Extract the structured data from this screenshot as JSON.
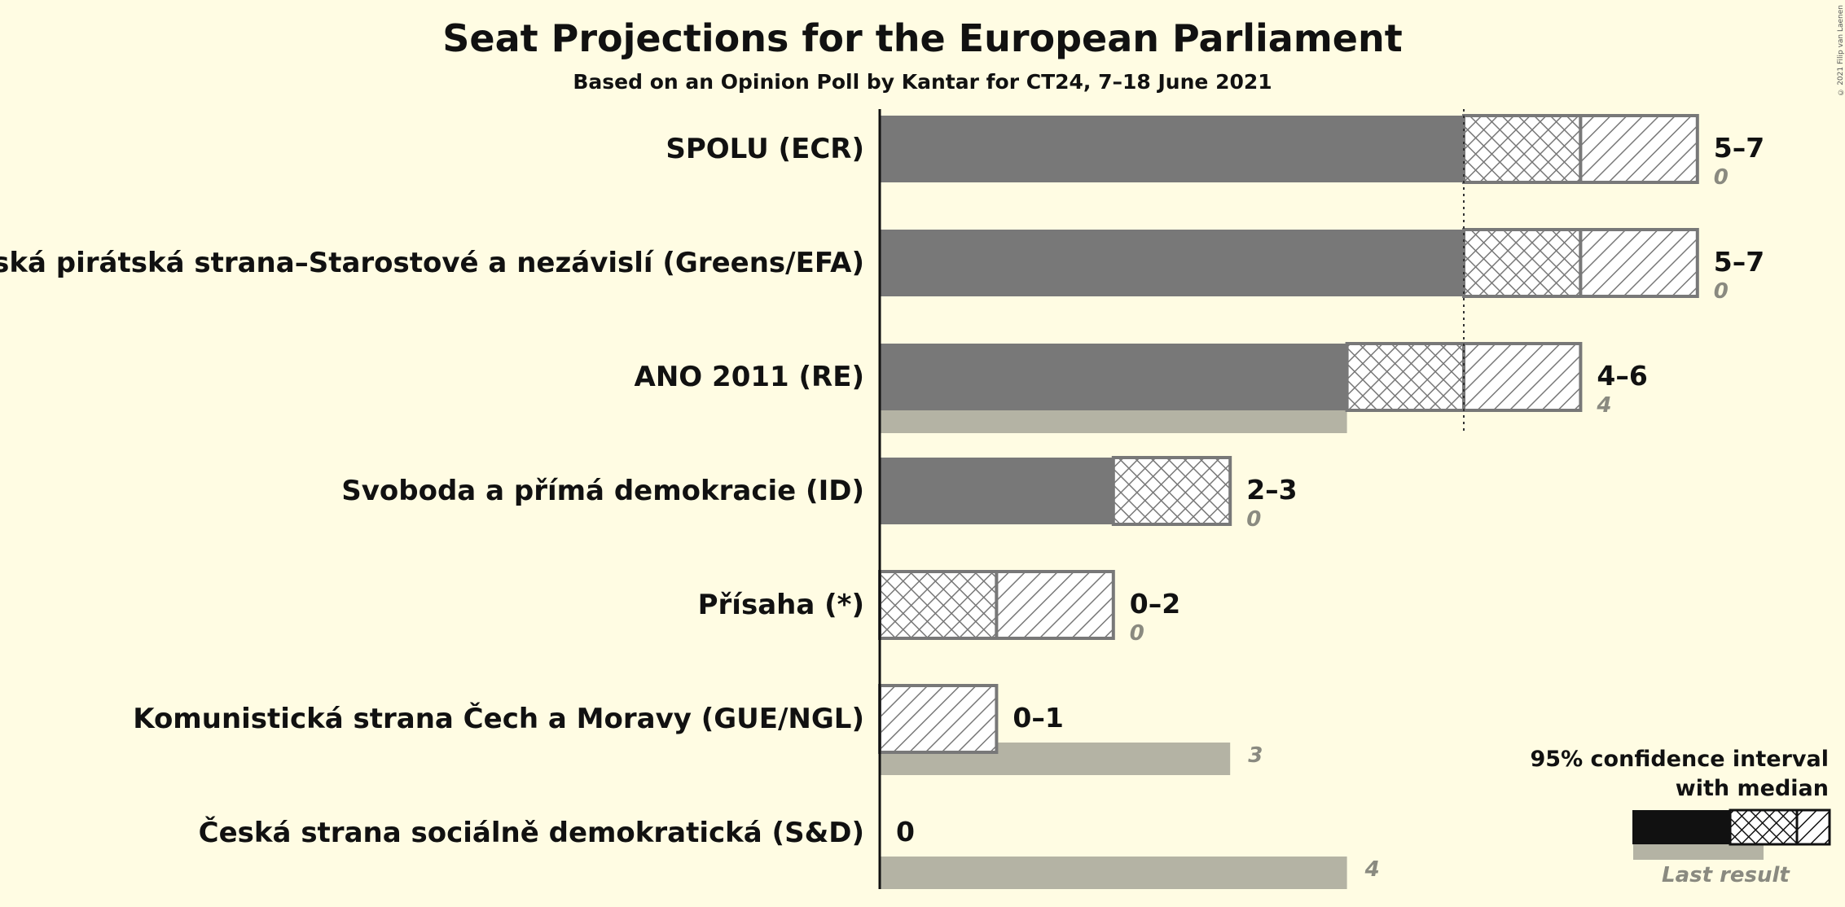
{
  "title": "Seat Projections for the European Parliament",
  "subtitle": "Based on an Opinion Poll by Kantar for CT24, 7–18 June 2021",
  "copyright": "© 2021 Filip van Laenen",
  "legend": {
    "title_line1": "95% confidence interval",
    "title_line2": "with median",
    "last_result": "Last result"
  },
  "colors": {
    "background": "#fffce3",
    "bar": "#787878",
    "last_result": "#b4b3a4",
    "legend_dark": "#111111"
  },
  "chart_data": {
    "type": "bar",
    "orientation": "horizontal",
    "majority_line": 5,
    "parties": [
      {
        "name": "SPOLU (ECR)",
        "low": 5,
        "median": 6,
        "high": 7,
        "last": 0,
        "range_label": "5–7",
        "last_label": "0"
      },
      {
        "name": "Česká pirátská strana–Starostové a nezávislí (Greens/EFA)",
        "low": 5,
        "median": 6,
        "high": 7,
        "last": 0,
        "range_label": "5–7",
        "last_label": "0"
      },
      {
        "name": "ANO 2011 (RE)",
        "low": 4,
        "median": 5,
        "high": 6,
        "last": 4,
        "range_label": "4–6",
        "last_label": "4"
      },
      {
        "name": "Svoboda a přímá demokracie (ID)",
        "low": 2,
        "median": 3,
        "high": 3,
        "last": 0,
        "range_label": "2–3",
        "last_label": "0"
      },
      {
        "name": "Přísaha (*)",
        "low": 0,
        "median": 1,
        "high": 2,
        "last": 0,
        "range_label": "0–2",
        "last_label": "0"
      },
      {
        "name": "Komunistická strana Čech a Moravy (GUE/NGL)",
        "low": 0,
        "median": 0,
        "high": 1,
        "last": 3,
        "range_label": "0–1",
        "last_label": "3"
      },
      {
        "name": "Česká strana sociálně demokratická (S&D)",
        "low": 0,
        "median": 0,
        "high": 0,
        "last": 4,
        "range_label": "0",
        "last_label": "4"
      }
    ]
  }
}
